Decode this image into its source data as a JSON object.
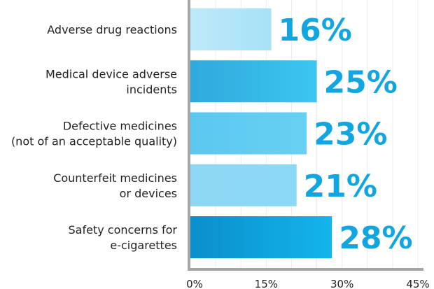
{
  "chart_data": {
    "type": "bar",
    "orientation": "horizontal",
    "categories": [
      [
        "Adverse drug reactions"
      ],
      [
        "Medical device adverse",
        "incidents"
      ],
      [
        "Defective medicines",
        "(not of an acceptable quality)"
      ],
      [
        "Counterfeit medicines",
        "or devices"
      ],
      [
        "Safety concerns for",
        "e-cigarettes"
      ]
    ],
    "values": [
      16,
      25,
      23,
      21,
      28
    ],
    "value_labels": [
      "16%",
      "25%",
      "23%",
      "21%",
      "28%"
    ],
    "bar_colors": [
      [
        "#bde9f9",
        "#a7e1f6"
      ],
      [
        "#2fa9dc",
        "#3cc6f1"
      ],
      [
        "#5cc8ef",
        "#67d0f3"
      ],
      [
        "#8fd7f4",
        "#8bd9f6"
      ],
      [
        "#0a8fca",
        "#14b4ec"
      ]
    ],
    "value_label_color": "#12a6e0",
    "xlim": [
      0,
      45
    ],
    "xticks": [
      0,
      15,
      30,
      45
    ],
    "xtick_labels": [
      "0%",
      "15%",
      "30%",
      "45%"
    ],
    "grid": "vertical",
    "title": "",
    "xlabel": "",
    "ylabel": ""
  }
}
